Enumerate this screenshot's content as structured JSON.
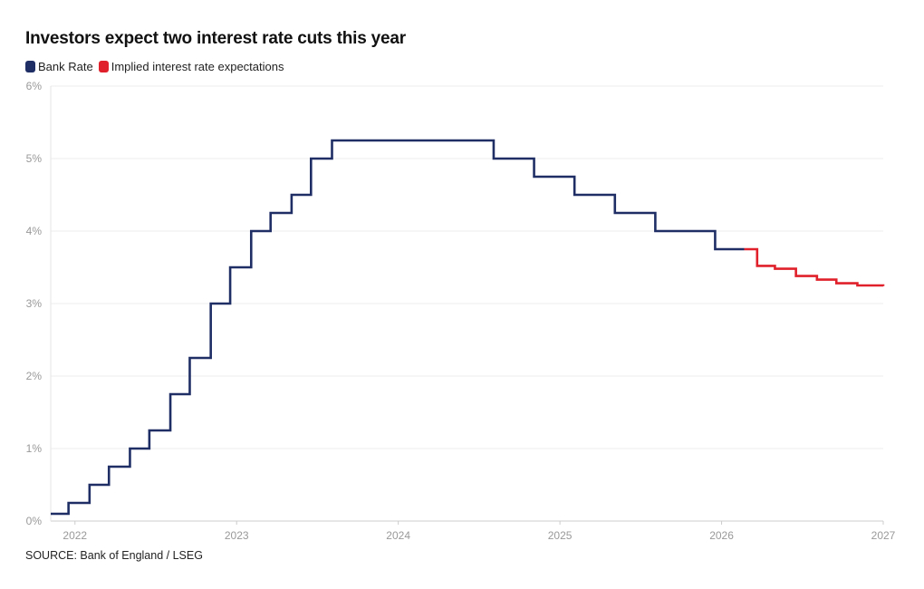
{
  "chart_data": {
    "type": "line",
    "step": true,
    "title": "Investors expect two interest rate cuts this year",
    "xlabel": "",
    "ylabel": "",
    "xlim": [
      2021.85,
      2027.0
    ],
    "ylim": [
      0,
      6
    ],
    "x_ticks": [
      {
        "value": 2022,
        "label": "2022"
      },
      {
        "value": 2023,
        "label": "2023"
      },
      {
        "value": 2024,
        "label": "2024"
      },
      {
        "value": 2025,
        "label": "2025"
      },
      {
        "value": 2026,
        "label": "2026"
      },
      {
        "value": 2027,
        "label": "2027"
      }
    ],
    "y_ticks": [
      {
        "value": 0,
        "label": "0%"
      },
      {
        "value": 1,
        "label": "1%"
      },
      {
        "value": 2,
        "label": "2%"
      },
      {
        "value": 3,
        "label": "3%"
      },
      {
        "value": 4,
        "label": "4%"
      },
      {
        "value": 5,
        "label": "5%"
      },
      {
        "value": 6,
        "label": "6%"
      }
    ],
    "grid": true,
    "legend_position": "top-left",
    "series": [
      {
        "name": "Bank Rate",
        "color": "#1f2f66",
        "x": [
          2021.85,
          2021.96,
          2022.09,
          2022.21,
          2022.34,
          2022.46,
          2022.59,
          2022.71,
          2022.84,
          2022.96,
          2023.09,
          2023.21,
          2023.34,
          2023.46,
          2023.59,
          2024.59,
          2024.84,
          2025.09,
          2025.34,
          2025.59,
          2025.96,
          2026.14
        ],
        "y": [
          0.1,
          0.25,
          0.5,
          0.75,
          1.0,
          1.25,
          1.75,
          2.25,
          3.0,
          3.5,
          4.0,
          4.25,
          4.5,
          5.0,
          5.25,
          5.0,
          4.75,
          4.5,
          4.25,
          4.0,
          3.75,
          3.75
        ]
      },
      {
        "name": "Implied interest rate expectations",
        "color": "#e0202a",
        "x": [
          2026.14,
          2026.22,
          2026.33,
          2026.46,
          2026.59,
          2026.71,
          2026.84,
          2027.0
        ],
        "y": [
          3.75,
          3.52,
          3.48,
          3.38,
          3.33,
          3.28,
          3.25,
          3.24
        ]
      }
    ],
    "source": "SOURCE: Bank of England / LSEG"
  }
}
